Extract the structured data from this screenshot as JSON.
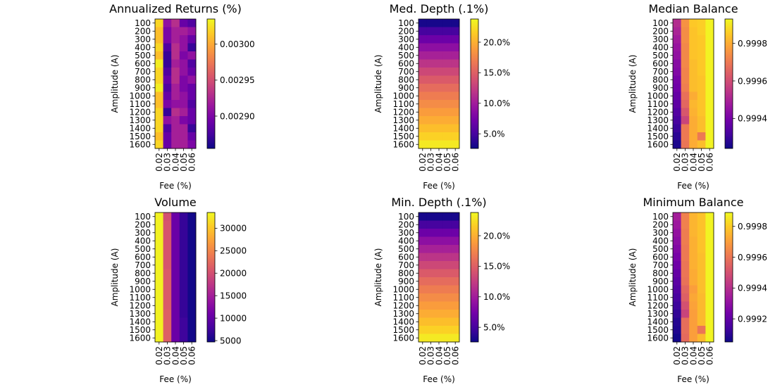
{
  "figure": {
    "colormap_stops": [
      "#0d0887",
      "#46039f",
      "#7201a8",
      "#9c179e",
      "#bd3786",
      "#d8576b",
      "#ed7953",
      "#fb9f3a",
      "#fdca26",
      "#f0f921"
    ]
  },
  "chart_data": [
    {
      "type": "heatmap",
      "title": "Annualized Returns (%)",
      "xlabel": "Fee (%)",
      "ylabel": "Amplitude (A)",
      "x_categories": [
        "0.02",
        "0.03",
        "0.04",
        "0.05",
        "0.06"
      ],
      "y_categories": [
        "100",
        "200",
        "300",
        "400",
        "500",
        "600",
        "700",
        "800",
        "900",
        "1000",
        "1100",
        "1200",
        "1300",
        "1400",
        "1500",
        "1600"
      ],
      "colorbar": {
        "vmin": 0.002855,
        "vmax": 0.003035,
        "ticks": [
          0.0029,
          0.00295,
          0.003
        ],
        "tick_labels": [
          "0.00290",
          "0.00295",
          "0.00300"
        ]
      },
      "values": [
        [
          0.00302,
          0.00291,
          0.00293,
          0.00289,
          0.00288
        ],
        [
          0.00301,
          0.0029,
          0.00292,
          0.00292,
          0.00291
        ],
        [
          0.00301,
          0.0029,
          0.00292,
          0.00291,
          0.00289
        ],
        [
          0.00302,
          0.00288,
          0.00293,
          0.00291,
          0.00287
        ],
        [
          0.00301,
          0.00287,
          0.00293,
          0.0029,
          0.00291
        ],
        [
          0.00303,
          0.00287,
          0.00292,
          0.00291,
          0.00288
        ],
        [
          0.00302,
          0.00288,
          0.00293,
          0.00291,
          0.00289
        ],
        [
          0.00302,
          0.00289,
          0.00293,
          0.0029,
          0.00291
        ],
        [
          0.00303,
          0.00288,
          0.00292,
          0.0029,
          0.00289
        ],
        [
          0.00301,
          0.00289,
          0.00292,
          0.00291,
          0.00289
        ],
        [
          0.00301,
          0.0029,
          0.00291,
          0.00291,
          0.00288
        ],
        [
          0.00302,
          0.00287,
          0.00293,
          0.00292,
          0.00289
        ],
        [
          0.00302,
          0.00291,
          0.00292,
          0.0029,
          0.00289
        ],
        [
          0.00302,
          0.00288,
          0.00292,
          0.00292,
          0.00287
        ],
        [
          0.00301,
          0.00289,
          0.00292,
          0.00292,
          0.00289
        ],
        [
          0.00302,
          0.00289,
          0.00292,
          0.00292,
          0.0029
        ]
      ]
    },
    {
      "type": "heatmap",
      "title": "Med. Depth (.1%)",
      "xlabel": "Fee (%)",
      "ylabel": "Amplitude (A)",
      "x_categories": [
        "0.02",
        "0.03",
        "0.04",
        "0.05",
        "0.06"
      ],
      "y_categories": [
        "100",
        "200",
        "300",
        "400",
        "500",
        "600",
        "700",
        "800",
        "900",
        "1000",
        "1100",
        "1200",
        "1300",
        "1400",
        "1500",
        "1600"
      ],
      "colorbar": {
        "vmin": 2.6,
        "vmax": 23.8,
        "ticks": [
          5,
          10,
          15,
          20
        ],
        "tick_labels": [
          "5.0%",
          "10.0%",
          "15.0%",
          "20.0%"
        ]
      },
      "values": [
        [
          3.0,
          3.0,
          3.0,
          3.0,
          3.0
        ],
        [
          5.0,
          5.0,
          5.0,
          5.0,
          5.0
        ],
        [
          7.0,
          7.0,
          7.0,
          7.0,
          7.0
        ],
        [
          8.8,
          8.8,
          8.8,
          8.8,
          8.8
        ],
        [
          10.4,
          10.4,
          10.4,
          10.4,
          10.4
        ],
        [
          11.9,
          11.9,
          11.9,
          11.9,
          11.9
        ],
        [
          13.3,
          13.3,
          13.3,
          13.3,
          13.3
        ],
        [
          14.6,
          14.6,
          14.6,
          14.6,
          14.6
        ],
        [
          15.8,
          15.8,
          15.8,
          15.8,
          15.8
        ],
        [
          16.9,
          16.9,
          16.9,
          16.9,
          16.9
        ],
        [
          17.9,
          17.9,
          17.9,
          17.9,
          17.9
        ],
        [
          18.9,
          18.9,
          18.9,
          18.9,
          18.9
        ],
        [
          19.8,
          19.8,
          19.8,
          19.8,
          19.8
        ],
        [
          20.8,
          20.8,
          20.8,
          20.8,
          20.8
        ],
        [
          21.8,
          21.8,
          21.8,
          21.8,
          21.8
        ],
        [
          23.0,
          23.0,
          23.0,
          23.0,
          23.0
        ]
      ]
    },
    {
      "type": "heatmap",
      "title": "Median Balance",
      "xlabel": "Fee (%)",
      "ylabel": "Amplitude (A)",
      "x_categories": [
        "0.02",
        "0.03",
        "0.04",
        "0.05",
        "0.06"
      ],
      "y_categories": [
        "100",
        "200",
        "300",
        "400",
        "500",
        "600",
        "700",
        "800",
        "900",
        "1000",
        "1100",
        "1200",
        "1300",
        "1400",
        "1500",
        "1600"
      ],
      "colorbar": {
        "vmin": 0.99924,
        "vmax": 0.99993,
        "ticks": [
          0.9994,
          0.9996,
          0.9998
        ],
        "tick_labels": [
          "0.9994",
          "0.9996",
          "0.9998"
        ]
      },
      "values": [
        [
          0.99952,
          0.99975,
          0.99985,
          0.99986,
          0.99992
        ],
        [
          0.9995,
          0.99974,
          0.99984,
          0.99986,
          0.99992
        ],
        [
          0.99948,
          0.99974,
          0.99984,
          0.99985,
          0.99992
        ],
        [
          0.99946,
          0.99973,
          0.99984,
          0.99985,
          0.99992
        ],
        [
          0.99945,
          0.99973,
          0.99984,
          0.99985,
          0.99992
        ],
        [
          0.99943,
          0.99973,
          0.99983,
          0.99985,
          0.99992
        ],
        [
          0.99942,
          0.99972,
          0.99983,
          0.99985,
          0.99992
        ],
        [
          0.9994,
          0.99972,
          0.99983,
          0.99984,
          0.99992
        ],
        [
          0.99939,
          0.99971,
          0.99983,
          0.99984,
          0.99992
        ],
        [
          0.99937,
          0.99968,
          0.9998,
          0.99984,
          0.99992
        ],
        [
          0.99936,
          0.99966,
          0.99982,
          0.99984,
          0.99992
        ],
        [
          0.99934,
          0.99962,
          0.99981,
          0.99984,
          0.99992
        ],
        [
          0.99932,
          0.99958,
          0.9998,
          0.99983,
          0.99992
        ],
        [
          0.9993,
          0.9997,
          0.9998,
          0.99983,
          0.99992
        ],
        [
          0.99928,
          0.9997,
          0.9998,
          0.9997,
          0.99992
        ],
        [
          0.99926,
          0.99969,
          0.9998,
          0.99983,
          0.99992
        ]
      ]
    },
    {
      "type": "heatmap",
      "title": "Volume",
      "xlabel": "Fee (%)",
      "ylabel": "Amplitude (A)",
      "x_categories": [
        "0.02",
        "0.03",
        "0.04",
        "0.05",
        "0.06"
      ],
      "y_categories": [
        "100",
        "200",
        "300",
        "400",
        "500",
        "600",
        "700",
        "800",
        "900",
        "1000",
        "1100",
        "1200",
        "1300",
        "1400",
        "1500",
        "1600"
      ],
      "colorbar": {
        "vmin": 4700,
        "vmax": 33500,
        "ticks": [
          5000,
          10000,
          15000,
          20000,
          25000,
          30000
        ],
        "tick_labels": [
          "5000",
          "10000",
          "15000",
          "20000",
          "25000",
          "30000"
        ]
      },
      "values": [
        [
          33000,
          20000,
          10500,
          7000,
          5000
        ],
        [
          33000,
          20500,
          10500,
          7000,
          5000
        ],
        [
          33000,
          20500,
          10500,
          7000,
          5000
        ],
        [
          33000,
          20500,
          10500,
          7000,
          5000
        ],
        [
          33000,
          20500,
          10500,
          7000,
          5000
        ],
        [
          33000,
          20500,
          10500,
          7000,
          5000
        ],
        [
          33000,
          20500,
          10500,
          7000,
          5000
        ],
        [
          33000,
          21000,
          10500,
          7000,
          5000
        ],
        [
          33000,
          21000,
          10500,
          7000,
          5000
        ],
        [
          33000,
          21000,
          10500,
          7000,
          5000
        ],
        [
          33000,
          21000,
          10500,
          7000,
          5000
        ],
        [
          33000,
          21000,
          10500,
          7000,
          5000
        ],
        [
          33000,
          21500,
          10500,
          7000,
          5000
        ],
        [
          33000,
          21500,
          10500,
          7500,
          5000
        ],
        [
          33000,
          21500,
          10500,
          7500,
          5000
        ],
        [
          33000,
          21500,
          10500,
          7500,
          5000
        ]
      ]
    },
    {
      "type": "heatmap",
      "title": "Min. Depth (.1%)",
      "xlabel": "Fee (%)",
      "ylabel": "Amplitude (A)",
      "x_categories": [
        "0.02",
        "0.03",
        "0.04",
        "0.05",
        "0.06"
      ],
      "y_categories": [
        "100",
        "200",
        "300",
        "400",
        "500",
        "600",
        "700",
        "800",
        "900",
        "1000",
        "1100",
        "1200",
        "1300",
        "1400",
        "1500",
        "1600"
      ],
      "colorbar": {
        "vmin": 2.6,
        "vmax": 23.8,
        "ticks": [
          5,
          10,
          15,
          20
        ],
        "tick_labels": [
          "5.0%",
          "10.0%",
          "15.0%",
          "20.0%"
        ]
      },
      "values": [
        [
          3.0,
          3.0,
          3.0,
          3.0,
          3.0
        ],
        [
          5.0,
          5.0,
          5.0,
          5.0,
          5.0
        ],
        [
          7.0,
          7.0,
          7.0,
          7.0,
          7.0
        ],
        [
          8.8,
          8.8,
          8.8,
          8.8,
          8.8
        ],
        [
          10.4,
          10.4,
          10.4,
          10.4,
          10.4
        ],
        [
          11.9,
          11.9,
          11.9,
          11.9,
          11.9
        ],
        [
          13.3,
          13.3,
          13.3,
          13.3,
          13.3
        ],
        [
          14.6,
          14.6,
          14.6,
          14.6,
          14.6
        ],
        [
          15.8,
          15.8,
          15.8,
          15.8,
          15.8
        ],
        [
          16.9,
          16.9,
          16.9,
          16.9,
          16.9
        ],
        [
          17.9,
          17.9,
          17.9,
          17.9,
          17.9
        ],
        [
          18.9,
          18.9,
          18.9,
          18.9,
          18.9
        ],
        [
          19.8,
          19.8,
          19.8,
          19.8,
          19.8
        ],
        [
          20.8,
          20.8,
          20.8,
          20.8,
          20.8
        ],
        [
          21.8,
          21.8,
          21.8,
          21.8,
          21.8
        ],
        [
          23.0,
          23.0,
          23.0,
          23.0,
          23.0
        ]
      ]
    },
    {
      "type": "heatmap",
      "title": "Minimum Balance",
      "xlabel": "Fee (%)",
      "ylabel": "Amplitude (A)",
      "x_categories": [
        "0.02",
        "0.03",
        "0.04",
        "0.05",
        "0.06"
      ],
      "y_categories": [
        "100",
        "200",
        "300",
        "400",
        "500",
        "600",
        "700",
        "800",
        "900",
        "1000",
        "1100",
        "1200",
        "1300",
        "1400",
        "1500",
        "1600"
      ],
      "colorbar": {
        "vmin": 0.99905,
        "vmax": 0.99989,
        "ticks": [
          0.9992,
          0.9994,
          0.9996,
          0.9998
        ],
        "tick_labels": [
          "0.9992",
          "0.9994",
          "0.9996",
          "0.9998"
        ]
      },
      "values": [
        [
          0.99935,
          0.99963,
          0.99975,
          0.99978,
          0.99988
        ],
        [
          0.99933,
          0.99963,
          0.99975,
          0.99978,
          0.99988
        ],
        [
          0.99931,
          0.99962,
          0.99975,
          0.99978,
          0.99988
        ],
        [
          0.99929,
          0.99962,
          0.99974,
          0.99978,
          0.99988
        ],
        [
          0.99927,
          0.99961,
          0.99974,
          0.99978,
          0.99988
        ],
        [
          0.99925,
          0.99961,
          0.99974,
          0.99977,
          0.99988
        ],
        [
          0.99923,
          0.9996,
          0.99974,
          0.99977,
          0.99988
        ],
        [
          0.99921,
          0.9996,
          0.99973,
          0.99977,
          0.99988
        ],
        [
          0.99919,
          0.99959,
          0.99973,
          0.99977,
          0.99988
        ],
        [
          0.99917,
          0.99956,
          0.9997,
          0.99977,
          0.99988
        ],
        [
          0.99915,
          0.99954,
          0.99972,
          0.99976,
          0.99988
        ],
        [
          0.99913,
          0.9995,
          0.99971,
          0.99976,
          0.99988
        ],
        [
          0.99911,
          0.99946,
          0.9997,
          0.99976,
          0.99988
        ],
        [
          0.99909,
          0.99958,
          0.9997,
          0.99976,
          0.99988
        ],
        [
          0.99908,
          0.99958,
          0.9997,
          0.9996,
          0.99988
        ],
        [
          0.99906,
          0.99957,
          0.9997,
          0.99976,
          0.99988
        ]
      ]
    }
  ]
}
